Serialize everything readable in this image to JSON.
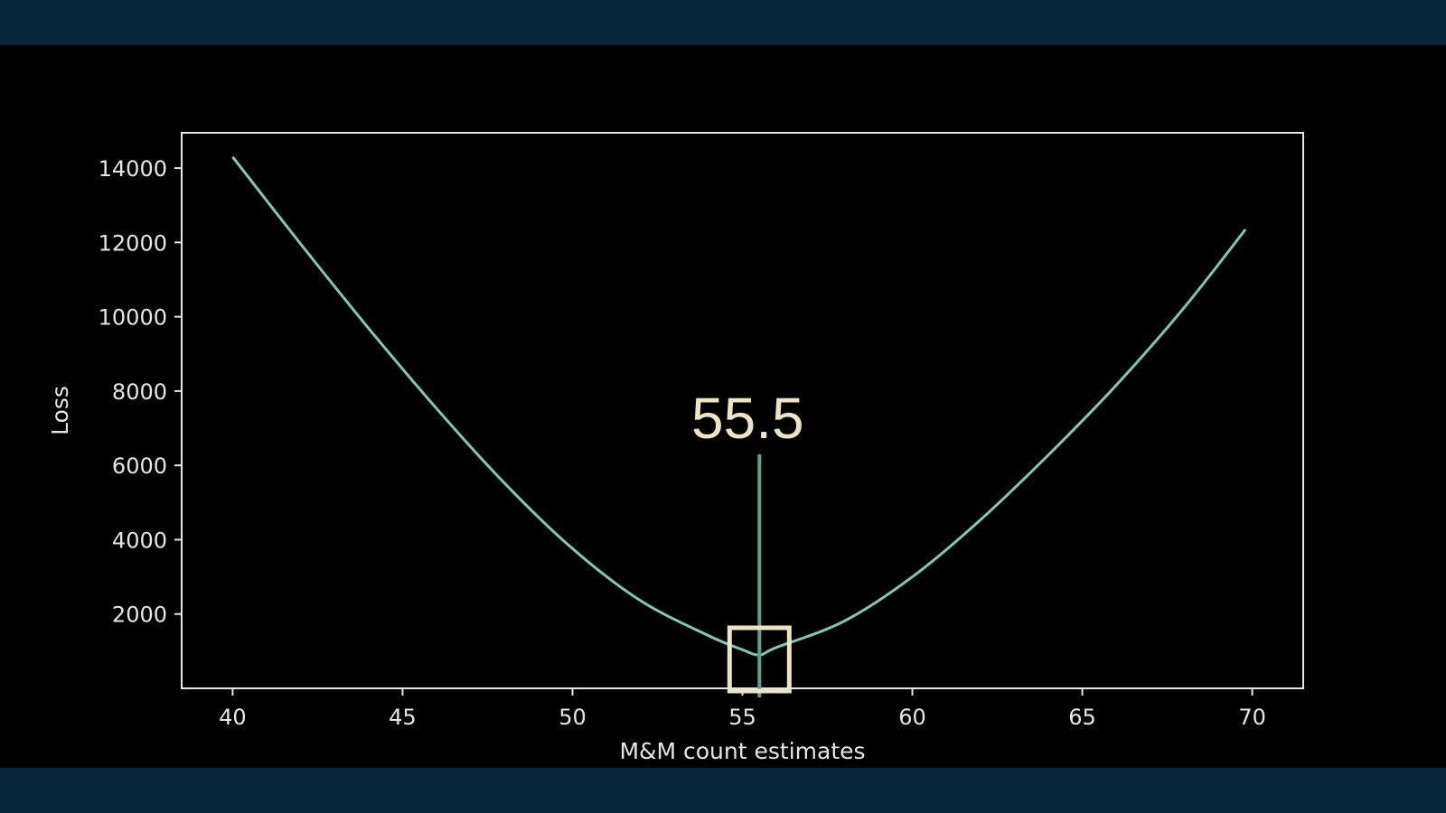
{
  "colors": {
    "band": "#06263c",
    "plot_bg": "#000000",
    "axes": "#e6e6e6",
    "curve": "#7ec8b5",
    "marker_line": "#5f9f90",
    "annotation": "#ece4c4"
  },
  "chart_data": {
    "type": "line",
    "xlabel": "M&M count estimates",
    "ylabel": "Loss",
    "xlim": [
      38.5,
      71.5
    ],
    "ylim": [
      0,
      14950
    ],
    "xticks": [
      40,
      45,
      50,
      55,
      60,
      65,
      70
    ],
    "xtick_labels": [
      "40",
      "45",
      "50",
      "55",
      "60",
      "65",
      "70"
    ],
    "yticks": [
      2000,
      4000,
      6000,
      8000,
      10000,
      12000,
      14000
    ],
    "ytick_labels": [
      "2000",
      "4000",
      "6000",
      "8000",
      "10000",
      "12000",
      "14000"
    ],
    "grid": false,
    "series": [
      {
        "x": [
          40,
          42,
          44,
          46,
          48,
          50,
          52,
          54,
          55,
          55.5,
          56,
          58,
          60,
          62,
          64,
          66,
          68,
          69.8
        ],
        "y": [
          14300,
          11960,
          9690,
          7530,
          5520,
          3760,
          2360,
          1420,
          1040,
          900,
          1100,
          1810,
          3000,
          4530,
          6280,
          8160,
          10250,
          12350
        ]
      }
    ],
    "annotation": {
      "text": "55.5",
      "x": 55.5,
      "y": 900,
      "line_top_y": 6300
    }
  }
}
